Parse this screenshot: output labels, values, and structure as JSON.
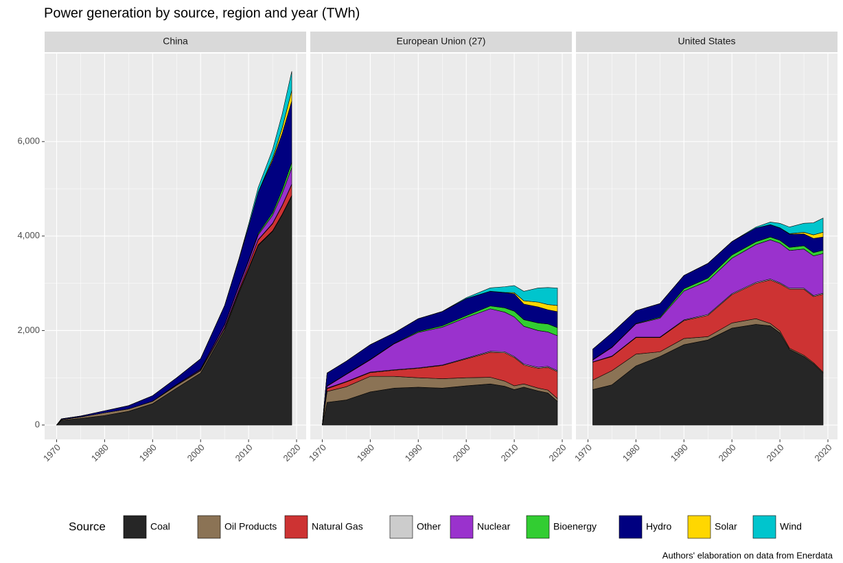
{
  "title": "Power generation by source, region and year (TWh)",
  "legend_title": "Source",
  "caption": "Authors' elaboration on data from Enerdata",
  "chart_data": [
    {
      "type": "area",
      "stacked": true,
      "title": "China",
      "x": [
        1970,
        1971,
        1975,
        1980,
        1985,
        1990,
        1995,
        2000,
        2005,
        2008,
        2010,
        2012,
        2015,
        2017,
        2019
      ],
      "xlim": [
        1967.5,
        2022
      ],
      "xticks": [
        1970,
        1980,
        1990,
        2000,
        2010,
        2020
      ],
      "ylim": [
        -305,
        7863
      ],
      "yticks": [
        0,
        {
          "value": 2000,
          "label": "2,000"
        },
        {
          "value": 4000,
          "label": "4,000"
        },
        {
          "value": 6000,
          "label": "6,000"
        }
      ],
      "grid": true,
      "series": [
        {
          "name": "Coal",
          "color": "#262626",
          "values": [
            0,
            100,
            140,
            200,
            290,
            450,
            780,
            1100,
            2000,
            2800,
            3300,
            3800,
            4100,
            4450,
            4850
          ]
        },
        {
          "name": "Oil Products",
          "color": "#8b7355",
          "values": [
            0,
            15,
            30,
            60,
            50,
            50,
            60,
            50,
            40,
            30,
            20,
            15,
            10,
            10,
            10
          ]
        },
        {
          "name": "Natural Gas",
          "color": "#cd3333",
          "values": [
            0,
            0,
            0,
            0,
            0,
            5,
            5,
            10,
            20,
            40,
            70,
            100,
            150,
            180,
            230
          ]
        },
        {
          "name": "Other",
          "color": "#cccccc",
          "values": [
            0,
            0,
            0,
            0,
            0,
            0,
            0,
            0,
            5,
            5,
            5,
            10,
            10,
            10,
            10
          ]
        },
        {
          "name": "Nuclear",
          "color": "#9a32cd",
          "values": [
            0,
            0,
            0,
            0,
            0,
            0,
            13,
            17,
            50,
            70,
            74,
            97,
            171,
            248,
            348
          ]
        },
        {
          "name": "Bioenergy",
          "color": "#32cd32",
          "values": [
            0,
            0,
            0,
            0,
            0,
            0,
            0,
            5,
            10,
            15,
            20,
            30,
            50,
            80,
            110
          ]
        },
        {
          "name": "Hydro",
          "color": "#000080",
          "values": [
            0,
            15,
            20,
            40,
            70,
            115,
            140,
            220,
            400,
            550,
            710,
            870,
            1110,
            1190,
            1300
          ]
        },
        {
          "name": "Solar",
          "color": "#ffd700",
          "values": [
            0,
            0,
            0,
            0,
            0,
            0,
            0,
            0,
            0,
            0,
            1,
            6,
            45,
            118,
            225
          ]
        },
        {
          "name": "Wind",
          "color": "#00c5cd",
          "values": [
            0,
            0,
            0,
            0,
            0,
            0,
            0,
            1,
            2,
            13,
            49,
            100,
            185,
            295,
            405
          ]
        }
      ]
    },
    {
      "type": "area",
      "stacked": true,
      "title": "European Union (27)",
      "x": [
        1970,
        1971,
        1975,
        1980,
        1985,
        1990,
        1995,
        2000,
        2005,
        2008,
        2010,
        2012,
        2015,
        2017,
        2019
      ],
      "xlim": [
        1967.5,
        2022
      ],
      "xticks": [
        1970,
        1980,
        1990,
        2000,
        2010,
        2020
      ],
      "ylim": [
        -305,
        7863
      ],
      "yticks": [
        0,
        {
          "value": 2000,
          "label": "2,000"
        },
        {
          "value": 4000,
          "label": "4,000"
        },
        {
          "value": 6000,
          "label": "6,000"
        }
      ],
      "grid": true,
      "series": [
        {
          "name": "Coal",
          "color": "#262626",
          "values": [
            0,
            480,
            530,
            700,
            780,
            800,
            780,
            830,
            870,
            820,
            750,
            800,
            720,
            680,
            500
          ]
        },
        {
          "name": "Oil Products",
          "color": "#8b7355",
          "values": [
            0,
            230,
            280,
            330,
            250,
            200,
            200,
            170,
            140,
            110,
            80,
            70,
            60,
            60,
            60
          ]
        },
        {
          "name": "Natural Gas",
          "color": "#cd3333",
          "values": [
            0,
            60,
            100,
            80,
            130,
            200,
            280,
            400,
            530,
            600,
            600,
            400,
            420,
            480,
            570
          ]
        },
        {
          "name": "Other",
          "color": "#cccccc",
          "values": [
            0,
            10,
            10,
            10,
            10,
            10,
            10,
            15,
            20,
            20,
            20,
            20,
            20,
            20,
            20
          ]
        },
        {
          "name": "Nuclear",
          "color": "#9a32cd",
          "values": [
            0,
            40,
            150,
            260,
            550,
            750,
            800,
            860,
            900,
            840,
            840,
            800,
            780,
            730,
            740
          ]
        },
        {
          "name": "Bioenergy",
          "color": "#32cd32",
          "values": [
            0,
            10,
            10,
            10,
            10,
            20,
            30,
            40,
            60,
            90,
            120,
            140,
            160,
            170,
            170
          ]
        },
        {
          "name": "Hydro",
          "color": "#000080",
          "values": [
            0,
            270,
            270,
            310,
            220,
            270,
            300,
            360,
            310,
            320,
            370,
            330,
            340,
            300,
            340
          ]
        },
        {
          "name": "Solar",
          "color": "#ffd700",
          "values": [
            0,
            0,
            0,
            0,
            0,
            0,
            0,
            0,
            2,
            7,
            22,
            70,
            100,
            110,
            130
          ]
        },
        {
          "name": "Wind",
          "color": "#00c5cd",
          "values": [
            0,
            0,
            0,
            0,
            0,
            1,
            5,
            20,
            70,
            120,
            150,
            200,
            300,
            360,
            370
          ]
        }
      ]
    },
    {
      "type": "area",
      "stacked": true,
      "title": "United States",
      "x": [
        1971,
        1975,
        1980,
        1985,
        1990,
        1995,
        2000,
        2005,
        2008,
        2010,
        2012,
        2015,
        2017,
        2019
      ],
      "xlim": [
        1967.5,
        2022
      ],
      "xticks": [
        1970,
        1980,
        1990,
        2000,
        2010,
        2020
      ],
      "ylim": [
        -305,
        7863
      ],
      "yticks": [
        0,
        {
          "value": 2000,
          "label": "2,000"
        },
        {
          "value": 4000,
          "label": "4,000"
        },
        {
          "value": 6000,
          "label": "6,000"
        }
      ],
      "grid": true,
      "series": [
        {
          "name": "Coal",
          "color": "#262626",
          "values": [
            750,
            850,
            1250,
            1450,
            1700,
            1800,
            2050,
            2130,
            2100,
            1950,
            1600,
            1450,
            1300,
            1100
          ]
        },
        {
          "name": "Oil Products",
          "color": "#8b7355",
          "values": [
            200,
            300,
            250,
            100,
            130,
            70,
            110,
            120,
            50,
            40,
            25,
            25,
            20,
            20
          ]
        },
        {
          "name": "Natural Gas",
          "color": "#cd3333",
          "values": [
            380,
            300,
            350,
            300,
            380,
            450,
            600,
            750,
            920,
            1000,
            1250,
            1400,
            1400,
            1650
          ]
        },
        {
          "name": "Other",
          "color": "#cccccc",
          "values": [
            5,
            10,
            10,
            10,
            15,
            20,
            20,
            20,
            20,
            20,
            20,
            20,
            20,
            20
          ]
        },
        {
          "name": "Nuclear",
          "color": "#9a32cd",
          "values": [
            40,
            180,
            280,
            400,
            610,
            710,
            750,
            800,
            830,
            840,
            800,
            830,
            840,
            840
          ]
        },
        {
          "name": "Bioenergy",
          "color": "#32cd32",
          "values": [
            10,
            10,
            10,
            20,
            50,
            60,
            70,
            60,
            60,
            60,
            65,
            70,
            70,
            70
          ]
        },
        {
          "name": "Hydro",
          "color": "#000080",
          "values": [
            220,
            300,
            270,
            290,
            280,
            310,
            280,
            290,
            260,
            260,
            280,
            250,
            300,
            280
          ]
        },
        {
          "name": "Solar",
          "color": "#ffd700",
          "values": [
            0,
            0,
            0,
            0,
            0,
            0,
            0,
            0,
            1,
            4,
            10,
            35,
            75,
            100
          ]
        },
        {
          "name": "Wind",
          "color": "#00c5cd",
          "values": [
            0,
            0,
            0,
            0,
            0,
            2,
            5,
            20,
            55,
            95,
            140,
            190,
            255,
            300
          ]
        }
      ]
    }
  ]
}
